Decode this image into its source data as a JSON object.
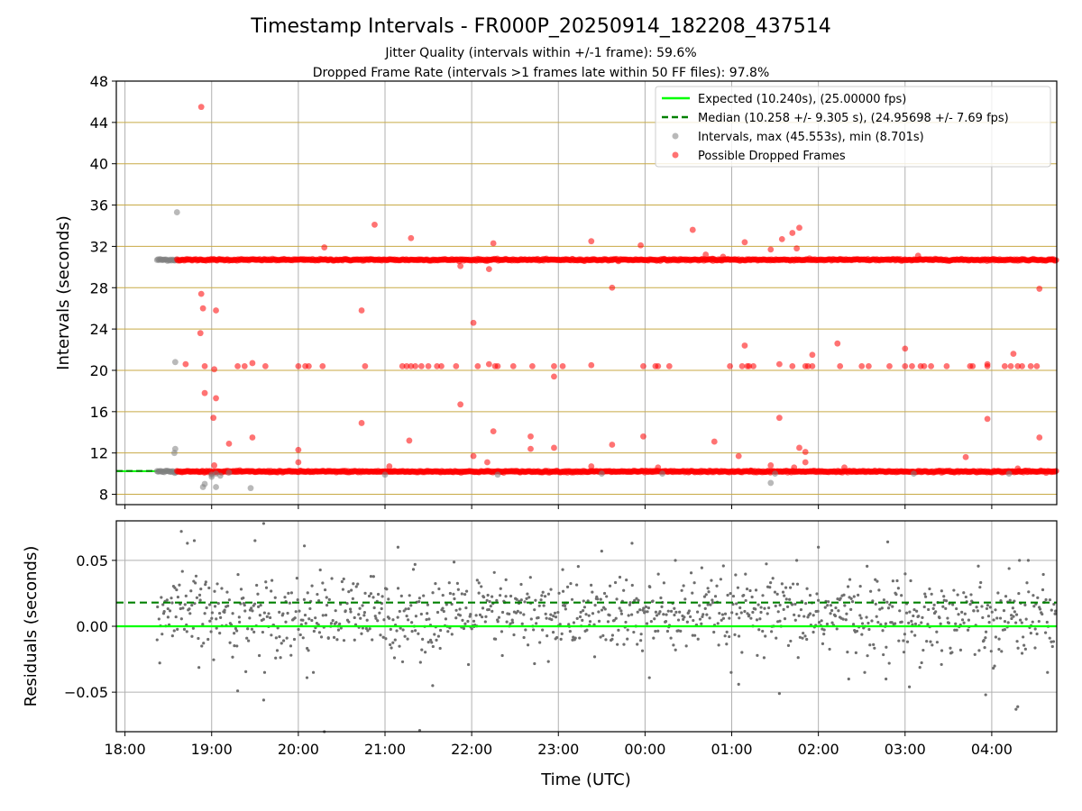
{
  "chart_data": [
    {
      "type": "scatter",
      "title": "Timestamp Intervals - FR000P_20250914_182208_437514",
      "subtitle1": "Jitter Quality (intervals within +/-1 frame): 59.6%",
      "subtitle2": "Dropped Frame Rate (intervals >1 frames late within 50 FF files): 97.8%",
      "xlabel": "",
      "ylabel": "Intervals (seconds)",
      "xlim_hours": [
        17.9,
        28.75
      ],
      "ylim": [
        7,
        48
      ],
      "yticks": [
        8,
        12,
        16,
        20,
        24,
        28,
        32,
        36,
        40,
        44,
        48
      ],
      "grid": true,
      "legend_position": "top-right",
      "legend": [
        "Expected (10.240s), (25.00000 fps)",
        "Median (10.258 +/- 9.305 s), (24.95698 +/- 7.69 fps)",
        "Intervals, max (45.553s), min (8.701s)",
        "Possible Dropped Frames"
      ],
      "expected_interval": 10.24,
      "median_interval": 10.258,
      "colors": {
        "expected": "#00ff00",
        "median": "#008000",
        "intervals": "#808080",
        "dropped": "#ff0000",
        "hgrid": "#c8aa46",
        "vgrid": "#b0b0b0"
      },
      "series": [
        {
          "name": "Intervals",
          "bands": [
            {
              "y": 30.7,
              "x_start": 18.37,
              "x_end": 18.6
            },
            {
              "y": 10.2,
              "x_start": 18.37,
              "x_end": 18.6
            }
          ],
          "points": [
            [
              18.6,
              35.3
            ],
            [
              18.58,
              20.8
            ],
            [
              18.58,
              12.4
            ],
            [
              18.57,
              12.0
            ],
            [
              18.9,
              8.7
            ],
            [
              18.92,
              9.0
            ],
            [
              19.05,
              8.7
            ],
            [
              19.45,
              8.6
            ],
            [
              19.0,
              9.9
            ],
            [
              19.05,
              10.0
            ],
            [
              19.1,
              9.8
            ],
            [
              19.0,
              9.7
            ],
            [
              19.2,
              10.1
            ],
            [
              21.0,
              9.9
            ],
            [
              22.3,
              9.9
            ],
            [
              23.5,
              10.0
            ],
            [
              24.2,
              10.0
            ],
            [
              25.5,
              10.0
            ],
            [
              27.1,
              10.0
            ],
            [
              28.2,
              10.0
            ],
            [
              25.45,
              9.1
            ]
          ]
        },
        {
          "name": "Possible Dropped Frames",
          "bands": [
            {
              "y": 30.7,
              "x_start": 18.6,
              "x_end": 28.75
            },
            {
              "y": 10.2,
              "x_start": 18.6,
              "x_end": 28.75
            }
          ],
          "points": [
            [
              18.88,
              45.5
            ],
            [
              18.88,
              27.4
            ],
            [
              18.9,
              26.0
            ],
            [
              18.87,
              23.6
            ],
            [
              18.92,
              20.4
            ],
            [
              19.05,
              25.8
            ],
            [
              18.92,
              17.8
            ],
            [
              19.05,
              17.3
            ],
            [
              19.02,
              15.4
            ],
            [
              19.03,
              20.1
            ],
            [
              19.2,
              12.9
            ],
            [
              19.03,
              10.8
            ],
            [
              18.7,
              20.6
            ],
            [
              19.3,
              20.4
            ],
            [
              19.38,
              20.4
            ],
            [
              19.47,
              20.7
            ],
            [
              19.62,
              20.4
            ],
            [
              19.47,
              13.5
            ],
            [
              20.0,
              12.3
            ],
            [
              20.0,
              11.1
            ],
            [
              20.0,
              20.4
            ],
            [
              20.08,
              20.4
            ],
            [
              20.12,
              20.4
            ],
            [
              20.28,
              20.4
            ],
            [
              20.3,
              31.9
            ],
            [
              20.73,
              25.8
            ],
            [
              20.73,
              14.9
            ],
            [
              20.77,
              20.4
            ],
            [
              20.88,
              34.1
            ],
            [
              21.05,
              10.7
            ],
            [
              21.2,
              20.4
            ],
            [
              21.25,
              20.4
            ],
            [
              21.3,
              20.4
            ],
            [
              21.3,
              32.8
            ],
            [
              21.28,
              13.2
            ],
            [
              21.35,
              20.4
            ],
            [
              21.42,
              20.4
            ],
            [
              21.5,
              20.4
            ],
            [
              21.6,
              20.4
            ],
            [
              21.65,
              20.4
            ],
            [
              21.82,
              20.4
            ],
            [
              21.87,
              30.1
            ],
            [
              21.87,
              16.7
            ],
            [
              22.02,
              24.6
            ],
            [
              22.02,
              11.7
            ],
            [
              22.07,
              20.4
            ],
            [
              22.18,
              30.6
            ],
            [
              22.2,
              29.8
            ],
            [
              22.2,
              20.6
            ],
            [
              22.18,
              11.1
            ],
            [
              22.25,
              32.3
            ],
            [
              22.25,
              14.1
            ],
            [
              22.27,
              20.4
            ],
            [
              22.3,
              20.4
            ],
            [
              22.48,
              20.4
            ],
            [
              22.68,
              12.4
            ],
            [
              22.68,
              13.6
            ],
            [
              22.7,
              20.4
            ],
            [
              22.95,
              20.4
            ],
            [
              22.95,
              19.4
            ],
            [
              22.95,
              12.5
            ],
            [
              23.05,
              20.4
            ],
            [
              23.38,
              32.5
            ],
            [
              23.38,
              20.5
            ],
            [
              23.38,
              10.7
            ],
            [
              23.62,
              28.0
            ],
            [
              23.62,
              12.8
            ],
            [
              23.95,
              32.1
            ],
            [
              23.98,
              13.6
            ],
            [
              23.98,
              20.4
            ],
            [
              24.12,
              20.4
            ],
            [
              24.15,
              20.4
            ],
            [
              24.28,
              20.4
            ],
            [
              24.15,
              10.6
            ],
            [
              24.55,
              33.6
            ],
            [
              24.7,
              31.2
            ],
            [
              24.78,
              30.8
            ],
            [
              24.8,
              13.1
            ],
            [
              24.98,
              20.4
            ],
            [
              24.9,
              31.0
            ],
            [
              25.12,
              20.4
            ],
            [
              25.15,
              32.4
            ],
            [
              25.18,
              20.4
            ],
            [
              25.2,
              20.4
            ],
            [
              25.25,
              20.4
            ],
            [
              25.15,
              22.4
            ],
            [
              25.08,
              11.7
            ],
            [
              25.22,
              10.3
            ],
            [
              25.45,
              10.8
            ],
            [
              25.45,
              31.7
            ],
            [
              25.58,
              32.7
            ],
            [
              25.55,
              20.6
            ],
            [
              25.55,
              15.4
            ],
            [
              25.7,
              33.3
            ],
            [
              25.75,
              31.8
            ],
            [
              25.78,
              33.8
            ],
            [
              25.7,
              20.4
            ],
            [
              25.85,
              20.4
            ],
            [
              25.88,
              20.4
            ],
            [
              25.93,
              20.4
            ],
            [
              25.93,
              21.5
            ],
            [
              25.78,
              12.5
            ],
            [
              25.85,
              12.1
            ],
            [
              25.85,
              11.1
            ],
            [
              25.72,
              10.6
            ],
            [
              26.22,
              22.6
            ],
            [
              26.25,
              20.4
            ],
            [
              26.5,
              20.4
            ],
            [
              26.58,
              20.4
            ],
            [
              26.82,
              20.4
            ],
            [
              27.0,
              22.1
            ],
            [
              27.0,
              20.4
            ],
            [
              27.08,
              20.4
            ],
            [
              27.15,
              31.1
            ],
            [
              27.18,
              20.4
            ],
            [
              27.22,
              20.4
            ],
            [
              27.3,
              20.4
            ],
            [
              27.48,
              20.4
            ],
            [
              27.75,
              20.4
            ],
            [
              27.78,
              20.4
            ],
            [
              27.95,
              15.3
            ],
            [
              27.95,
              20.4
            ],
            [
              27.95,
              20.6
            ],
            [
              28.15,
              20.4
            ],
            [
              28.22,
              20.4
            ],
            [
              28.25,
              21.6
            ],
            [
              28.3,
              20.4
            ],
            [
              28.45,
              20.4
            ],
            [
              28.52,
              20.4
            ],
            [
              28.35,
              20.4
            ],
            [
              28.55,
              27.9
            ],
            [
              28.55,
              13.5
            ],
            [
              27.7,
              11.6
            ],
            [
              28.3,
              10.5
            ],
            [
              26.3,
              10.6
            ]
          ]
        }
      ],
      "xticks_hidden": true
    },
    {
      "type": "scatter",
      "xlabel": "Time (UTC)",
      "ylabel": "Residuals (seconds)",
      "xlim_hours": [
        17.9,
        28.75
      ],
      "ylim": [
        -0.08,
        0.08
      ],
      "yticks": [
        -0.05,
        0.0,
        0.05
      ],
      "ytick_labels": [
        "−0.05",
        "0.00",
        "0.05"
      ],
      "xticks_hours": [
        18,
        19,
        20,
        21,
        22,
        23,
        24,
        25,
        26,
        27,
        28
      ],
      "xtick_labels": [
        "18:00",
        "19:00",
        "20:00",
        "21:00",
        "22:00",
        "23:00",
        "00:00",
        "01:00",
        "02:00",
        "03:00",
        "04:00"
      ],
      "grid": true,
      "expected_residual": 0.0,
      "median_residual": 0.018,
      "residual_spread_sd": 0.015,
      "residual_center": 0.008,
      "residual_x_range": [
        18.37,
        28.75
      ],
      "residual_count": 1100,
      "outlier_points": [
        [
          18.65,
          0.072
        ],
        [
          18.72,
          0.063
        ],
        [
          18.8,
          0.065
        ],
        [
          19.5,
          0.065
        ],
        [
          19.6,
          0.078
        ],
        [
          19.6,
          -0.056
        ],
        [
          19.3,
          -0.049
        ],
        [
          20.07,
          0.061
        ],
        [
          20.3,
          -0.08
        ],
        [
          21.15,
          0.06
        ],
        [
          21.4,
          -0.079
        ],
        [
          21.55,
          -0.045
        ],
        [
          23.05,
          0.043
        ],
        [
          23.5,
          0.057
        ],
        [
          23.85,
          0.063
        ],
        [
          24.05,
          -0.039
        ],
        [
          24.35,
          0.05
        ],
        [
          25.08,
          -0.044
        ],
        [
          25.55,
          -0.051
        ],
        [
          26.0,
          0.06
        ],
        [
          26.8,
          0.064
        ],
        [
          27.05,
          -0.046
        ],
        [
          27.93,
          -0.052
        ],
        [
          28.28,
          -0.063
        ],
        [
          28.3,
          -0.061
        ],
        [
          28.32,
          0.05
        ],
        [
          27.42,
          -0.029
        ],
        [
          26.35,
          -0.04
        ],
        [
          26.78,
          -0.04
        ],
        [
          20.1,
          -0.039
        ]
      ],
      "colors": {
        "residuals": "#6e6e6e",
        "expected": "#00ff00",
        "median": "#008000",
        "grid": "#b0b0b0"
      }
    }
  ]
}
